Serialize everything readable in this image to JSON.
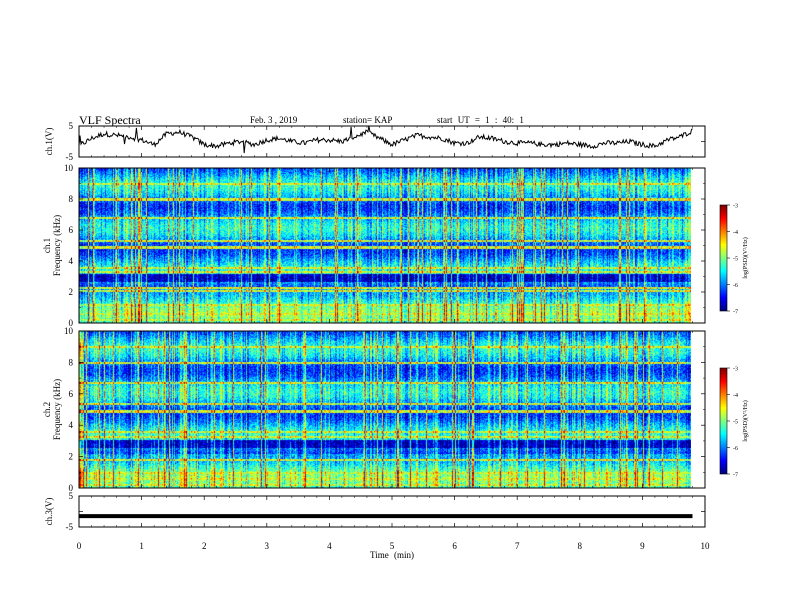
{
  "header": {
    "title": "VLF Spectra",
    "date": "Feb. 3 , 2019",
    "station": "station= KAP",
    "start_ut": "start UT = 1 : 40: 1"
  },
  "chart_data": [
    {
      "type": "line",
      "ylabel": "ch.1(V)",
      "ylim": [
        -5,
        5
      ],
      "yticks": [
        "5",
        "-5"
      ],
      "x": [
        0,
        0.2,
        0.4,
        0.6,
        0.8,
        1.0,
        1.2,
        1.4,
        1.6,
        1.8,
        2.0,
        2.2,
        2.4,
        2.6,
        2.8,
        3.0,
        3.2,
        3.4,
        3.6,
        3.8,
        4.0,
        4.2,
        4.4,
        4.6,
        4.8,
        5.0,
        5.2,
        5.4,
        5.6,
        5.8,
        6.0,
        6.2,
        6.4,
        6.6,
        6.8,
        7.0,
        7.2,
        7.4,
        7.6,
        7.8,
        8.0,
        8.2,
        8.4,
        8.6,
        8.8,
        9.0,
        9.2,
        9.4,
        9.6,
        9.8
      ],
      "values": [
        -1.5,
        1.0,
        2.5,
        2.0,
        1.5,
        0.5,
        -1.0,
        2.5,
        3.0,
        1.5,
        -1.0,
        -1.5,
        -0.5,
        0.0,
        -1.0,
        0.5,
        1.0,
        0.0,
        -0.5,
        0.5,
        0.5,
        0.0,
        1.5,
        3.0,
        1.0,
        -1.0,
        0.5,
        2.0,
        1.5,
        1.0,
        -0.5,
        -0.5,
        1.5,
        1.0,
        0.0,
        -0.5,
        -0.5,
        -1.0,
        -1.0,
        -0.5,
        -1.0,
        -1.5,
        -0.5,
        -0.5,
        0.0,
        -1.0,
        -1.5,
        0.5,
        1.5,
        3.5
      ]
    },
    {
      "type": "heatmap",
      "ylabel": "ch.1 Frequency (kHz)",
      "ylim": [
        0,
        10
      ],
      "yticks": [
        "0",
        "2",
        "4",
        "6",
        "8",
        "10"
      ],
      "colorbar": {
        "label": "log(PSD)(V²/Hz)",
        "ticks": [
          "-3",
          "-4",
          "-5",
          "-6",
          "-7"
        ],
        "range": [
          -7,
          -3
        ]
      },
      "bands_khz": [
        0.2,
        0.6,
        1.2,
        2.1,
        2.3,
        3.3,
        3.6,
        4.9,
        5.3,
        6.8,
        8.0,
        9.0
      ],
      "dark_band_khz": [
        2.7,
        3.2
      ]
    },
    {
      "type": "heatmap",
      "ylabel": "ch.2 Frequency (kHz)",
      "ylim": [
        0,
        10
      ],
      "yticks": [
        "0",
        "2",
        "4",
        "6",
        "8",
        "10"
      ],
      "colorbar": {
        "label": "log(PSD)(V²/Hz)",
        "ticks": [
          "-3",
          "-4",
          "-5",
          "-6",
          "-7"
        ],
        "range": [
          -7,
          -3
        ]
      },
      "bands_khz": [
        0.2,
        0.6,
        1.0,
        1.8,
        3.3,
        3.6,
        4.9,
        5.4,
        6.7,
        8.0,
        9.0
      ],
      "dark_band_khz": [
        2.6,
        3.1
      ]
    },
    {
      "type": "line",
      "ylabel": "ch.3(V)",
      "ylim": [
        -5,
        5
      ],
      "yticks": [
        "5",
        "-5"
      ],
      "x": [
        0,
        9.8
      ],
      "values": [
        -1.5,
        -1.5
      ]
    }
  ],
  "xaxis": {
    "label": "Time (min)",
    "xlim": [
      0,
      10
    ],
    "ticks": [
      "0",
      "1",
      "2",
      "3",
      "4",
      "5",
      "6",
      "7",
      "8",
      "9",
      "10"
    ]
  },
  "colors": {
    "line": "#000000",
    "colormap": [
      "#00007f",
      "#0000ff",
      "#007fff",
      "#00ffff",
      "#7fff7f",
      "#ffff00",
      "#ff7f00",
      "#ff0000",
      "#7f0000"
    ]
  }
}
